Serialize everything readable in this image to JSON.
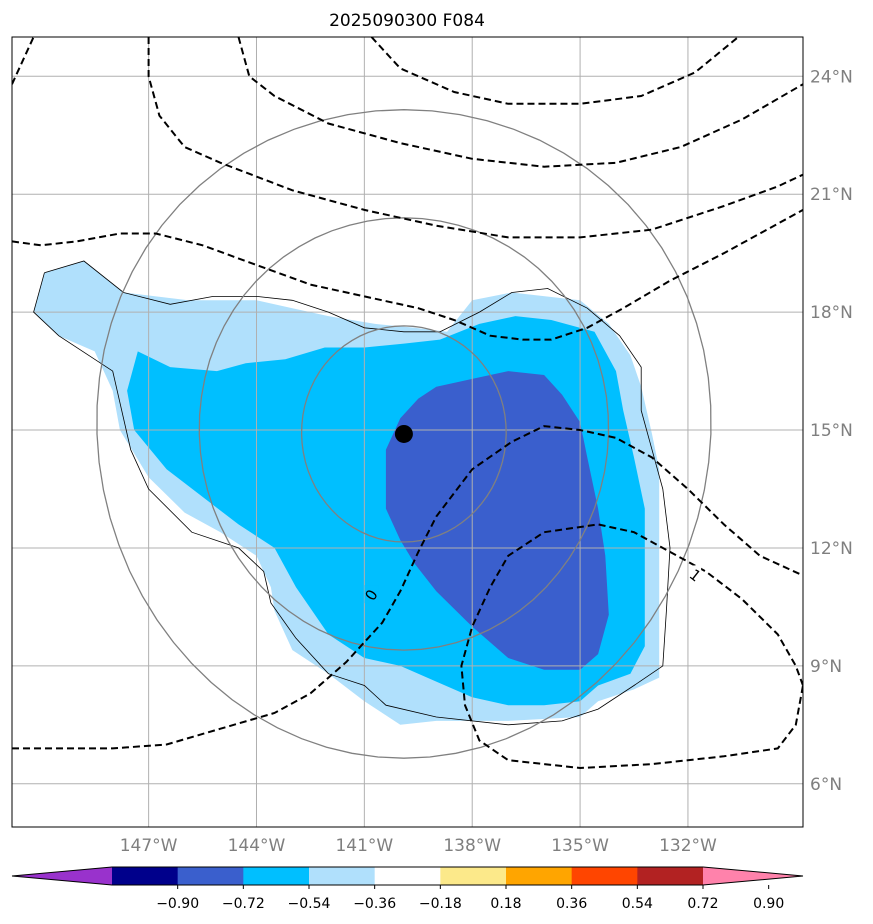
{
  "chart_data": {
    "type": "map-contour",
    "title": "2025090300 F084",
    "map": {
      "lon_range": [
        -150.8,
        -128.8
      ],
      "lat_range": [
        4.9,
        25.0
      ],
      "lon_ticks": [
        -147,
        -144,
        -141,
        -138,
        -135,
        -132
      ],
      "lon_tick_labels": [
        "147°W",
        "144°W",
        "141°W",
        "138°W",
        "135°W",
        "132°W"
      ],
      "lat_ticks": [
        6,
        9,
        12,
        15,
        18,
        21,
        24
      ],
      "lat_tick_labels": [
        "6°N",
        "9°N",
        "12°N",
        "15°N",
        "18°N",
        "21°N",
        "24°N"
      ],
      "grid": true
    },
    "center": {
      "lon": -139.9,
      "lat": 14.9,
      "marker": "black dot"
    },
    "range_rings_deg": [
      2.75,
      5.5,
      8.25
    ],
    "filled_levels": [
      {
        "level": -0.18,
        "color": "#b0e0fc",
        "outline": [
          [
            -150.2,
            18.0
          ],
          [
            -149.9,
            19.0
          ],
          [
            -148.8,
            19.3
          ],
          [
            -147.7,
            18.5
          ],
          [
            -145.9,
            18.3
          ],
          [
            -144.0,
            18.3
          ],
          [
            -143.0,
            18.1
          ],
          [
            -142.0,
            17.9
          ],
          [
            -140.7,
            17.7
          ],
          [
            -139.6,
            17.6
          ],
          [
            -138.7,
            17.5
          ],
          [
            -138.0,
            18.3
          ],
          [
            -136.9,
            18.5
          ],
          [
            -135.0,
            18.3
          ],
          [
            -134.2,
            17.7
          ],
          [
            -133.6,
            16.9
          ],
          [
            -133.3,
            16.1
          ],
          [
            -133.0,
            14.9
          ],
          [
            -132.8,
            14.0
          ],
          [
            -132.8,
            12.0
          ],
          [
            -132.8,
            10.0
          ],
          [
            -132.8,
            8.7
          ],
          [
            -133.5,
            8.4
          ],
          [
            -134.5,
            8.1
          ],
          [
            -135.0,
            7.7
          ],
          [
            -137.0,
            7.6
          ],
          [
            -139.0,
            7.6
          ],
          [
            -140.0,
            7.5
          ],
          [
            -141.0,
            8.1
          ],
          [
            -142.0,
            8.8
          ],
          [
            -143.0,
            9.4
          ],
          [
            -143.5,
            10.4
          ],
          [
            -143.6,
            11.0
          ],
          [
            -144.0,
            11.8
          ],
          [
            -145.0,
            12.4
          ],
          [
            -146.0,
            12.9
          ],
          [
            -147.0,
            13.8
          ],
          [
            -147.8,
            15.0
          ],
          [
            -148.0,
            16.0
          ],
          [
            -148.5,
            17.0
          ],
          [
            -149.5,
            17.4
          ],
          [
            -150.2,
            18.0
          ]
        ]
      },
      {
        "level": -0.36,
        "color": "#00bfff",
        "outline": [
          [
            -147.3,
            17.0
          ],
          [
            -146.4,
            16.6
          ],
          [
            -145.1,
            16.5
          ],
          [
            -144.3,
            16.7
          ],
          [
            -143.2,
            16.8
          ],
          [
            -142.1,
            17.1
          ],
          [
            -141.0,
            17.1
          ],
          [
            -139.9,
            17.2
          ],
          [
            -138.9,
            17.3
          ],
          [
            -137.8,
            17.7
          ],
          [
            -136.8,
            17.9
          ],
          [
            -135.8,
            17.8
          ],
          [
            -134.6,
            17.5
          ],
          [
            -134.0,
            16.5
          ],
          [
            -133.8,
            15.5
          ],
          [
            -133.5,
            14.3
          ],
          [
            -133.2,
            13.0
          ],
          [
            -133.2,
            11.5
          ],
          [
            -133.2,
            9.5
          ],
          [
            -133.6,
            8.8
          ],
          [
            -134.5,
            8.5
          ],
          [
            -135.0,
            8.1
          ],
          [
            -136.0,
            8.0
          ],
          [
            -137.0,
            8.0
          ],
          [
            -138.0,
            8.2
          ],
          [
            -139.0,
            8.6
          ],
          [
            -140.0,
            9.0
          ],
          [
            -141.0,
            9.2
          ],
          [
            -142.0,
            9.8
          ],
          [
            -142.9,
            11.0
          ],
          [
            -143.5,
            12.0
          ],
          [
            -144.5,
            12.6
          ],
          [
            -145.5,
            13.3
          ],
          [
            -146.5,
            14.0
          ],
          [
            -147.4,
            15.0
          ],
          [
            -147.6,
            16.0
          ],
          [
            -147.3,
            17.0
          ]
        ]
      },
      {
        "level": -0.54,
        "color": "#3a5fcd",
        "outline": [
          [
            -139.0,
            16.1
          ],
          [
            -138.0,
            16.3
          ],
          [
            -137.0,
            16.5
          ],
          [
            -136.0,
            16.4
          ],
          [
            -135.5,
            15.9
          ],
          [
            -135.0,
            15.2
          ],
          [
            -134.8,
            14.3
          ],
          [
            -134.5,
            13.0
          ],
          [
            -134.3,
            11.8
          ],
          [
            -134.2,
            10.3
          ],
          [
            -134.5,
            9.3
          ],
          [
            -135.0,
            8.9
          ],
          [
            -136.0,
            8.9
          ],
          [
            -137.0,
            9.2
          ],
          [
            -138.0,
            10.0
          ],
          [
            -139.0,
            10.9
          ],
          [
            -139.6,
            11.6
          ],
          [
            -140.0,
            12.2
          ],
          [
            -140.4,
            13.0
          ],
          [
            -140.4,
            14.5
          ],
          [
            -140.0,
            15.3
          ],
          [
            -139.5,
            15.8
          ],
          [
            -139.0,
            16.1
          ]
        ]
      }
    ],
    "land_outline": [
      [
        -149.9,
        19.0
      ],
      [
        -148.8,
        19.3
      ],
      [
        -147.7,
        18.5
      ],
      [
        -146.4,
        18.2
      ],
      [
        -145.2,
        18.4
      ],
      [
        -144.0,
        18.4
      ],
      [
        -143.0,
        18.3
      ],
      [
        -142.0,
        18.0
      ],
      [
        -141.0,
        17.6
      ],
      [
        -139.9,
        17.5
      ],
      [
        -138.9,
        17.5
      ],
      [
        -137.8,
        18.0
      ],
      [
        -136.9,
        18.5
      ],
      [
        -135.9,
        18.6
      ],
      [
        -134.8,
        18.1
      ],
      [
        -133.9,
        17.4
      ],
      [
        -133.3,
        16.6
      ],
      [
        -133.3,
        15.5
      ],
      [
        -133.0,
        14.5
      ],
      [
        -132.7,
        13.5
      ],
      [
        -132.5,
        12.0
      ],
      [
        -132.6,
        10.4
      ],
      [
        -132.7,
        9.0
      ],
      [
        -133.5,
        8.5
      ],
      [
        -134.5,
        7.9
      ],
      [
        -135.5,
        7.6
      ],
      [
        -137.0,
        7.5
      ],
      [
        -139.0,
        7.7
      ],
      [
        -140.4,
        8.0
      ],
      [
        -141.0,
        8.5
      ],
      [
        -142.0,
        8.8
      ],
      [
        -142.9,
        9.7
      ],
      [
        -143.6,
        10.6
      ],
      [
        -143.8,
        11.4
      ],
      [
        -144.5,
        12.0
      ],
      [
        -145.8,
        12.4
      ],
      [
        -147.0,
        13.5
      ],
      [
        -147.5,
        14.5
      ],
      [
        -148.0,
        16.5
      ],
      [
        -149.5,
        17.4
      ],
      [
        -150.2,
        18.0
      ],
      [
        -149.9,
        19.0
      ]
    ],
    "dashed_contours": [
      {
        "label": "",
        "points": [
          [
            -150.8,
            23.8
          ],
          [
            -150.2,
            25.0
          ]
        ]
      },
      {
        "label": "",
        "points": [
          [
            -144.5,
            25.0
          ],
          [
            -144.2,
            24.0
          ],
          [
            -143.5,
            23.5
          ],
          [
            -142.0,
            22.8
          ],
          [
            -140.0,
            22.3
          ],
          [
            -138.0,
            21.9
          ],
          [
            -136.0,
            21.7
          ],
          [
            -134.0,
            21.8
          ],
          [
            -132.2,
            22.2
          ],
          [
            -130.5,
            22.9
          ],
          [
            -128.8,
            23.8
          ]
        ]
      },
      {
        "label": "",
        "points": [
          [
            -140.8,
            25.0
          ],
          [
            -140.0,
            24.2
          ],
          [
            -138.5,
            23.6
          ],
          [
            -137.0,
            23.3
          ],
          [
            -135.0,
            23.3
          ],
          [
            -133.3,
            23.5
          ],
          [
            -131.8,
            24.1
          ],
          [
            -130.6,
            25.0
          ]
        ]
      },
      {
        "label": "",
        "points": [
          [
            -147.0,
            25.0
          ],
          [
            -147.0,
            24.0
          ],
          [
            -146.7,
            23.0
          ],
          [
            -146.0,
            22.2
          ],
          [
            -145.0,
            21.8
          ],
          [
            -143.0,
            21.1
          ],
          [
            -141.0,
            20.6
          ],
          [
            -139.0,
            20.2
          ],
          [
            -137.0,
            19.9
          ],
          [
            -135.0,
            19.9
          ],
          [
            -133.0,
            20.1
          ],
          [
            -131.0,
            20.7
          ],
          [
            -129.5,
            21.2
          ],
          [
            -128.8,
            21.5
          ]
        ]
      },
      {
        "label": "0",
        "points": [
          [
            -150.8,
            19.8
          ],
          [
            -150.0,
            19.7
          ],
          [
            -149.0,
            19.8
          ],
          [
            -147.8,
            20.0
          ],
          [
            -146.8,
            20.0
          ],
          [
            -145.5,
            19.7
          ],
          [
            -144.0,
            19.2
          ],
          [
            -142.5,
            18.7
          ],
          [
            -141.0,
            18.4
          ],
          [
            -139.5,
            18.1
          ],
          [
            -138.5,
            17.8
          ],
          [
            -137.5,
            17.4
          ],
          [
            -136.6,
            17.3
          ],
          [
            -135.8,
            17.3
          ],
          [
            -134.8,
            17.6
          ],
          [
            -133.8,
            18.1
          ],
          [
            -132.5,
            18.8
          ],
          [
            -131.0,
            19.5
          ],
          [
            -130.0,
            20.0
          ],
          [
            -128.8,
            20.6
          ]
        ]
      },
      {
        "label": "0",
        "points": [
          [
            -150.8,
            6.9
          ],
          [
            -149.5,
            6.9
          ],
          [
            -148.0,
            6.9
          ],
          [
            -146.5,
            7.0
          ],
          [
            -145.0,
            7.4
          ],
          [
            -143.5,
            7.8
          ],
          [
            -142.5,
            8.3
          ],
          [
            -141.5,
            9.1
          ],
          [
            -140.5,
            10.1
          ],
          [
            -140.0,
            10.9
          ],
          [
            -139.5,
            11.9
          ],
          [
            -139.0,
            12.8
          ],
          [
            -138.0,
            14.0
          ],
          [
            -136.9,
            14.7
          ],
          [
            -136.0,
            15.1
          ],
          [
            -135.0,
            15.0
          ],
          [
            -134.0,
            14.8
          ],
          [
            -133.0,
            14.3
          ],
          [
            -132.0,
            13.5
          ],
          [
            -131.0,
            12.6
          ],
          [
            -130.0,
            11.8
          ],
          [
            -128.8,
            11.3
          ]
        ]
      },
      {
        "label": "1",
        "points": [
          [
            -128.8,
            8.5
          ],
          [
            -129.0,
            9.0
          ],
          [
            -129.5,
            9.8
          ],
          [
            -130.5,
            10.7
          ],
          [
            -131.5,
            11.4
          ],
          [
            -132.5,
            11.9
          ],
          [
            -133.5,
            12.4
          ],
          [
            -134.5,
            12.6
          ],
          [
            -136.0,
            12.4
          ],
          [
            -137.0,
            11.8
          ],
          [
            -137.5,
            11.0
          ],
          [
            -138.0,
            10.0
          ],
          [
            -138.3,
            9.0
          ],
          [
            -138.2,
            8.0
          ],
          [
            -137.8,
            7.1
          ],
          [
            -137.0,
            6.6
          ],
          [
            -135.0,
            6.4
          ],
          [
            -133.0,
            6.5
          ],
          [
            -131.0,
            6.7
          ],
          [
            -129.5,
            6.9
          ],
          [
            -129.0,
            7.5
          ],
          [
            -128.8,
            8.5
          ]
        ]
      }
    ],
    "colorbar": {
      "ticks": [
        "−0.90",
        "−0.72",
        "−0.54",
        "−0.36",
        "−0.18",
        "0.18",
        "0.36",
        "0.54",
        "0.72",
        "0.90"
      ],
      "colors": [
        "#9932cc",
        "#00008b",
        "#3a5fcd",
        "#00bfff",
        "#b0e0fc",
        "#ffffff",
        "#fce98a",
        "#ffa500",
        "#ff4500",
        "#b22222",
        "#ff82ab"
      ]
    }
  }
}
